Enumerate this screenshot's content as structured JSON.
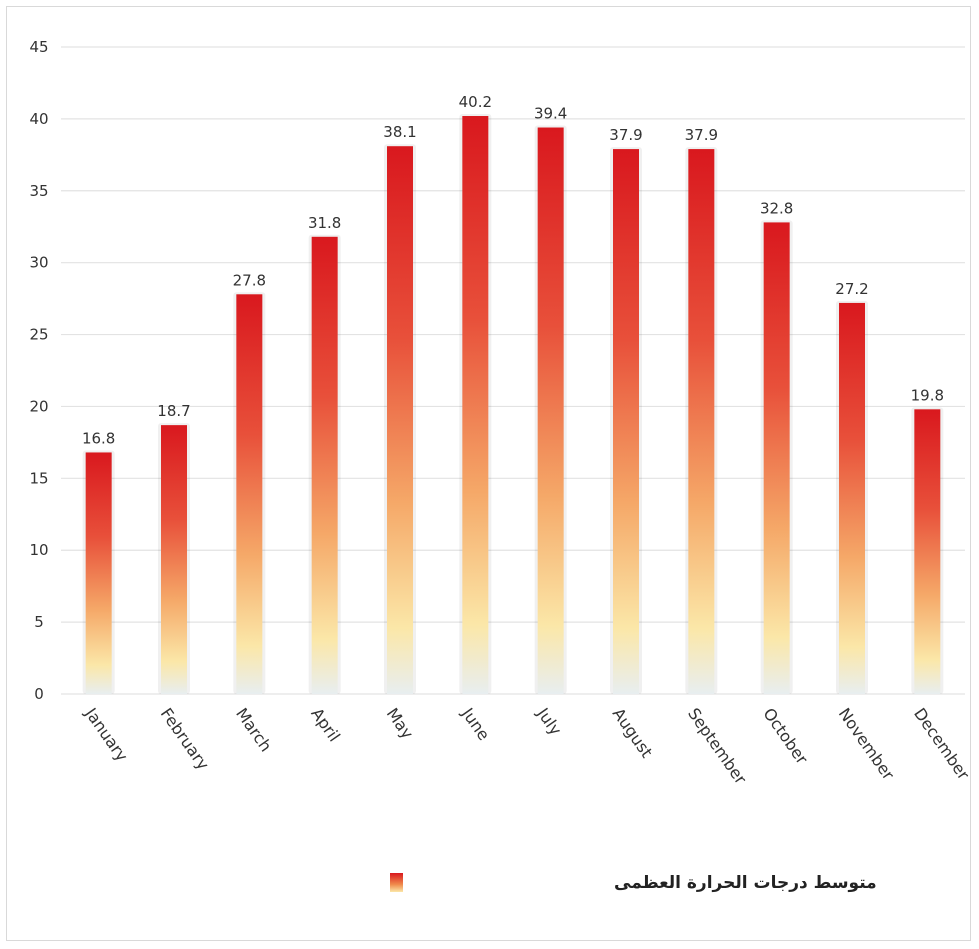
{
  "chart_data": {
    "type": "bar",
    "categories": [
      "January",
      "February",
      "March",
      "April",
      "May",
      "June",
      "July",
      "August",
      "September",
      "October",
      "November",
      "December"
    ],
    "series": [
      {
        "name": "متوسط درجات الحرارة العظمى",
        "values": [
          16.8,
          18.7,
          27.8,
          31.8,
          38.1,
          40.2,
          39.4,
          37.9,
          37.9,
          32.8,
          27.2,
          19.8
        ],
        "value_labels": [
          "16.8",
          "18.7",
          "27.8",
          "31.8",
          "38.1",
          "40.2",
          "39.4",
          "37.9",
          "37.9",
          "32.8",
          "27.2",
          "19.8"
        ]
      }
    ],
    "yticks": [
      "0",
      "5",
      "10",
      "15",
      "20",
      "25",
      "30",
      "35",
      "40",
      "45"
    ],
    "ylim": [
      0,
      45
    ],
    "grid": true,
    "legend_position": "bottom",
    "colors": {
      "bar_top": "#d9181e",
      "bar_mid": "#f08a4b",
      "bar_bottom": "#fbe7a8",
      "bar_base": "#e8eef0",
      "grid": "#e3e3e3"
    }
  }
}
